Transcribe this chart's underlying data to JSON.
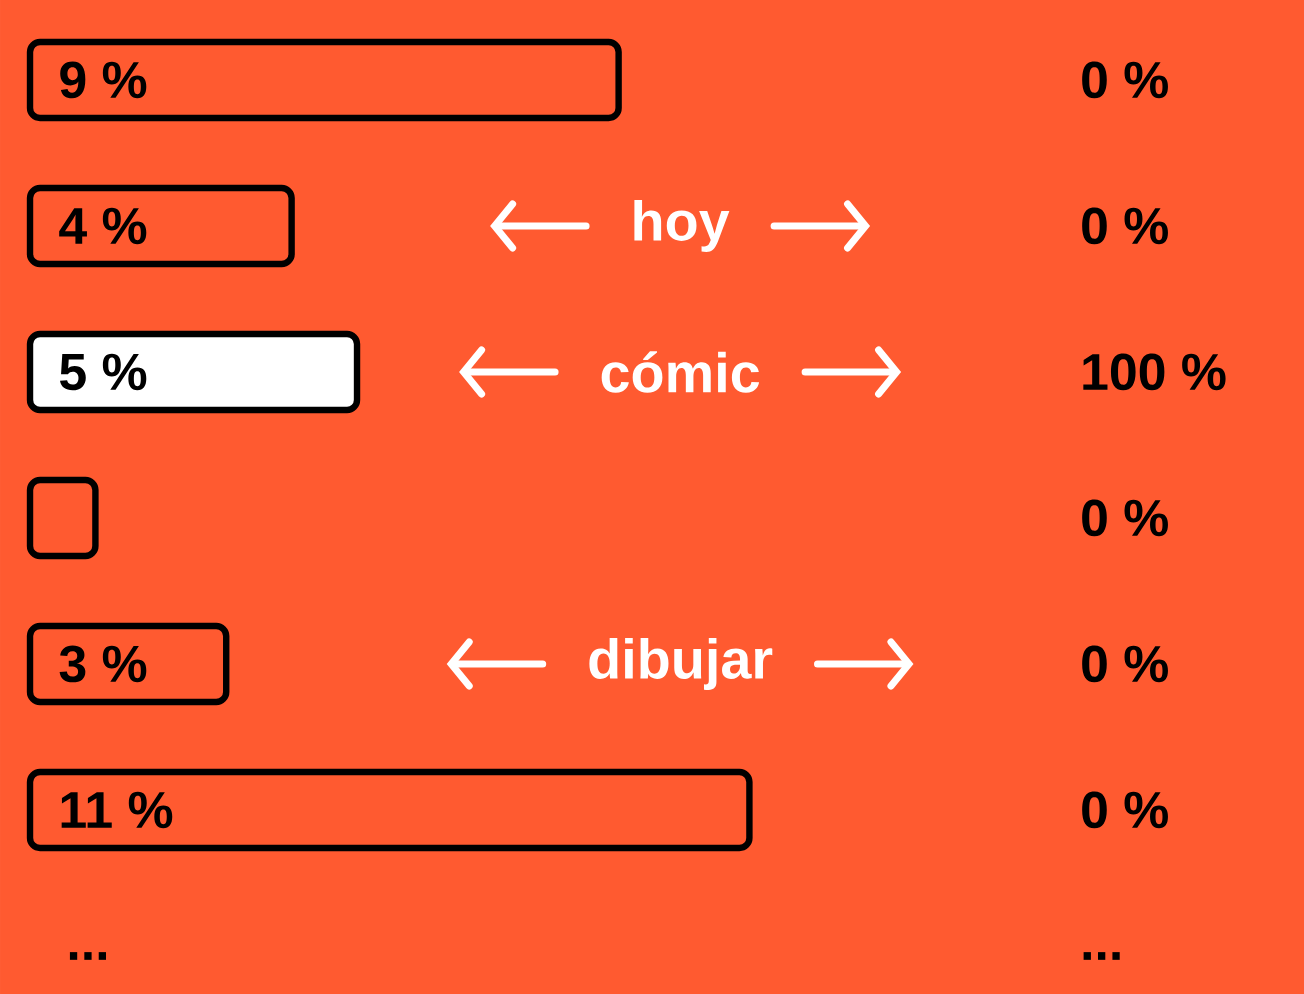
{
  "chart_data": {
    "type": "bar",
    "orientation": "horizontal",
    "categories": [
      null,
      "hoy",
      "cómic",
      null,
      "dibujar",
      null
    ],
    "values": [
      9,
      4,
      5,
      1,
      3,
      11
    ],
    "colors": [
      "#ff5a30",
      "#ff5a30",
      "#ffffff",
      "#ff5a30",
      "#ff5a30",
      "#ff5a30"
    ],
    "value_labels": [
      "9 %",
      "4 %",
      "5 %",
      null,
      "3 %",
      "11 %"
    ],
    "annotations": [
      "0 %",
      "0 %",
      "100 %",
      "0 %",
      "0 %",
      "0 %",
      "...",
      "..."
    ]
  }
}
